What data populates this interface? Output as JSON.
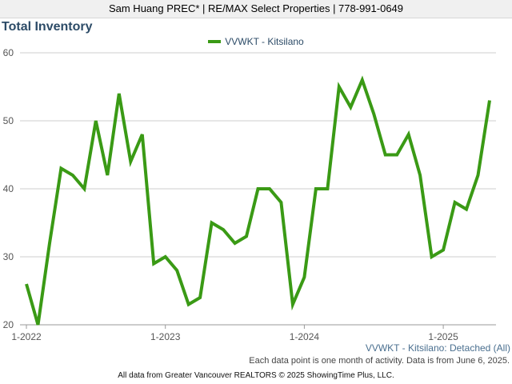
{
  "header": {
    "text": "Sam Huang PREC* | RE/MAX Select Properties | 778-991-0649"
  },
  "chart_data": {
    "type": "line",
    "title": "Total Inventory",
    "xlabel": "",
    "ylabel": "",
    "ylim": [
      20,
      60
    ],
    "yticks": [
      20,
      30,
      40,
      50,
      60
    ],
    "xticks": [
      {
        "label": "1-2022",
        "index": 0
      },
      {
        "label": "1-2023",
        "index": 12
      },
      {
        "label": "1-2024",
        "index": 24
      },
      {
        "label": "1-2025",
        "index": 36
      }
    ],
    "grid": true,
    "legend": "top-center",
    "series": [
      {
        "name": "VVWKT - Kitsilano",
        "color": "#3a9a15",
        "x": [
          "1-2022",
          "2-2022",
          "3-2022",
          "4-2022",
          "5-2022",
          "6-2022",
          "7-2022",
          "8-2022",
          "9-2022",
          "10-2022",
          "11-2022",
          "12-2022",
          "1-2023",
          "2-2023",
          "3-2023",
          "4-2023",
          "5-2023",
          "6-2023",
          "7-2023",
          "8-2023",
          "9-2023",
          "10-2023",
          "11-2023",
          "12-2023",
          "1-2024",
          "2-2024",
          "3-2024",
          "4-2024",
          "5-2024",
          "6-2024",
          "7-2024",
          "8-2024",
          "9-2024",
          "10-2024",
          "11-2024",
          "12-2024",
          "1-2025",
          "2-2025",
          "3-2025",
          "4-2025",
          "5-2025"
        ],
        "values": [
          26,
          20,
          32,
          43,
          42,
          40,
          50,
          42,
          54,
          44,
          48,
          29,
          30,
          28,
          23,
          24,
          35,
          34,
          32,
          33,
          40,
          40,
          38,
          23,
          27,
          40,
          40,
          55,
          52,
          56,
          51,
          45,
          45,
          48,
          42,
          30,
          31,
          38,
          37,
          42,
          53
        ]
      }
    ]
  },
  "series_label": "VVWKT - Kitsilano: Detached (All)",
  "footnote": "Each data point is one month of activity. Data is from June 6, 2025.",
  "copyright": "All data from Greater Vancouver REALTORS © 2025 ShowingTime Plus, LLC."
}
